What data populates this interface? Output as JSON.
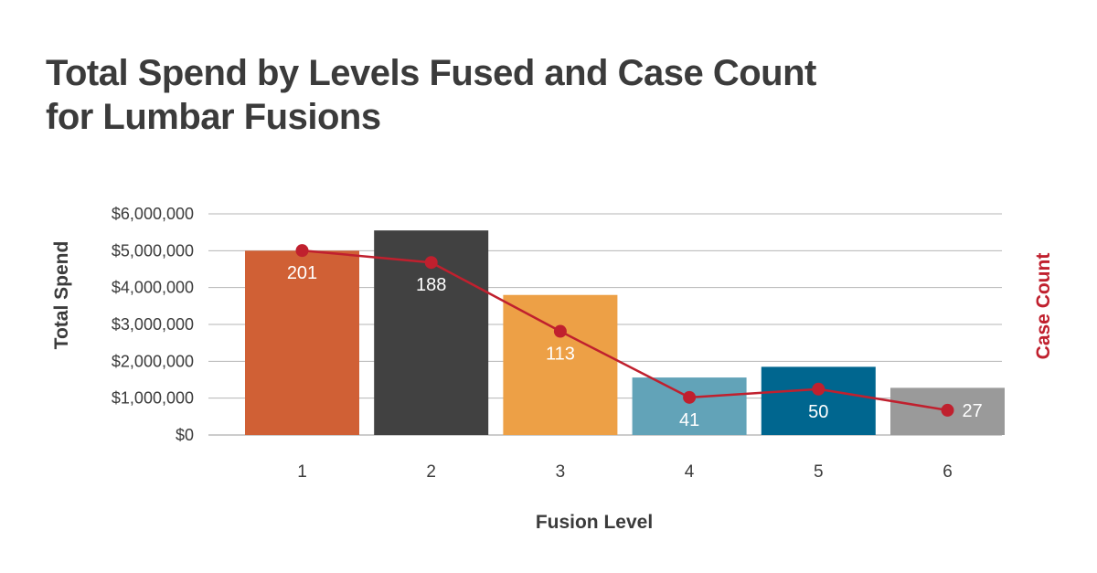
{
  "header": {
    "title_line1": "Total Spend by Levels Fused and Case Count",
    "title_line2": "for Lumbar Fusions"
  },
  "chart_data": {
    "type": "bar",
    "title": "Total Spend by Levels Fused and Case Count for Lumbar Fusions",
    "xlabel": "Fusion Level",
    "ylabel": "Total Spend",
    "y2label": "Case Count",
    "categories": [
      "1",
      "2",
      "3",
      "4",
      "5",
      "6"
    ],
    "ylim": [
      0,
      6000000
    ],
    "yticks": [
      0,
      1000000,
      2000000,
      3000000,
      4000000,
      5000000,
      6000000
    ],
    "ytick_labels": [
      "$0",
      "$1,000,000",
      "$2,000,000",
      "$3,000,000",
      "$4,000,000",
      "$5,000,000",
      "$6,000,000"
    ],
    "y2lim": [
      0,
      241
    ],
    "grid": true,
    "series": [
      {
        "type": "bar",
        "values": [
          5000000,
          5550000,
          3800000,
          1560000,
          1850000,
          1280000
        ],
        "colors": [
          "#d06035",
          "#414141",
          "#eda046",
          "#62a3b8",
          "#00668f",
          "#9a9a9a"
        ]
      },
      {
        "type": "line",
        "axis": "secondary",
        "values": [
          201,
          188,
          113,
          41,
          50,
          27
        ],
        "labels": [
          "201",
          "188",
          "113",
          "41",
          "50",
          "27"
        ],
        "color": "#c0202e"
      }
    ]
  },
  "colors": {
    "title": "#3b3b3b",
    "grid": "#b5b5b5",
    "axis_title_left": "#3b3b3b",
    "axis_title_right": "#c0202e"
  }
}
